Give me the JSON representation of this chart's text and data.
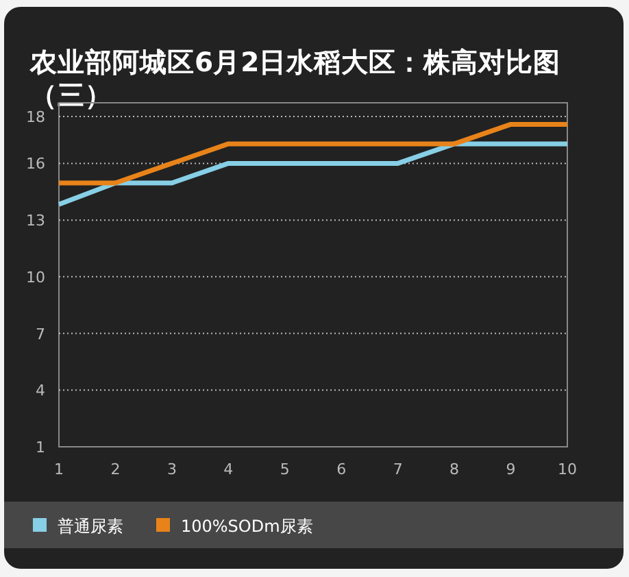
{
  "chart_data": {
    "type": "line",
    "title": "农业部阿城区6月2日水稻大区：株高对比图（三）",
    "x": [
      1,
      2,
      3,
      4,
      5,
      6,
      7,
      8,
      9,
      10
    ],
    "series": [
      {
        "name": "普通尿素",
        "color": "#87cfe6",
        "values": [
          13.4,
          14.5,
          14.5,
          15.5,
          15.5,
          15.5,
          15.5,
          16.5,
          16.5,
          16.5
        ]
      },
      {
        "name": "100%SODm尿素",
        "color": "#e8831a",
        "values": [
          14.5,
          14.5,
          15.5,
          16.5,
          16.5,
          16.5,
          16.5,
          16.5,
          17.5,
          17.5
        ]
      }
    ],
    "xlim": [
      1,
      10
    ],
    "ylim": [
      1,
      18.6
    ],
    "xticks": [
      1,
      2,
      3,
      4,
      5,
      6,
      7,
      8,
      9,
      10
    ],
    "yticks": [
      1,
      {
        "value": 3.9,
        "label": "4"
      },
      {
        "value": 6.8,
        "label": "7"
      },
      {
        "value": 9.7,
        "label": "10"
      },
      {
        "value": 12.6,
        "label": "13"
      },
      {
        "value": 15.5,
        "label": "16"
      },
      {
        "value": 17.9,
        "label": "18"
      }
    ],
    "grid": "y",
    "legend": "bottom",
    "line_style": "solid"
  }
}
